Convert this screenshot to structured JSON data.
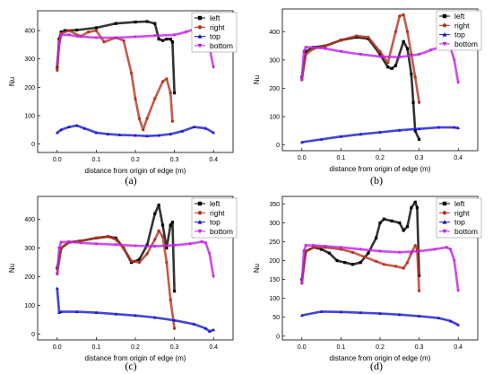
{
  "chart_data": [
    {
      "type": "line",
      "panel_label": "(a)",
      "xlabel": "distance from origin of edge (m)",
      "ylabel": "Nu",
      "xlim": [
        -0.05,
        0.45
      ],
      "ylim": [
        -30,
        470
      ],
      "xticks": [
        "0.0",
        "0.1",
        "0.2",
        "0.3",
        "0.4"
      ],
      "yticks": [
        "0",
        "100",
        "200",
        "300",
        "400"
      ],
      "legend_position": "top-right",
      "series": [
        {
          "name": "left",
          "color": "#000000",
          "marker": "square",
          "x": [
            0,
            0.005,
            0.01,
            0.02,
            0.05,
            0.1,
            0.15,
            0.2,
            0.23,
            0.25,
            0.26,
            0.27,
            0.28,
            0.29,
            0.295,
            0.3
          ],
          "y": [
            270,
            370,
            395,
            400,
            402,
            410,
            425,
            430,
            432,
            425,
            370,
            365,
            370,
            370,
            360,
            180
          ]
        },
        {
          "name": "right",
          "color": "#b5321c",
          "marker": "circle",
          "x": [
            0,
            0.005,
            0.01,
            0.03,
            0.06,
            0.08,
            0.1,
            0.12,
            0.15,
            0.17,
            0.19,
            0.2,
            0.21,
            0.22,
            0.23,
            0.25,
            0.27,
            0.28,
            0.29,
            0.295
          ],
          "y": [
            260,
            360,
            390,
            400,
            380,
            395,
            400,
            360,
            375,
            365,
            250,
            160,
            90,
            50,
            90,
            160,
            220,
            230,
            180,
            80
          ]
        },
        {
          "name": "top",
          "color": "#1515d0",
          "marker": "triangle-up",
          "x": [
            0,
            0.01,
            0.03,
            0.05,
            0.07,
            0.1,
            0.13,
            0.16,
            0.2,
            0.23,
            0.26,
            0.29,
            0.32,
            0.35,
            0.38,
            0.4
          ],
          "y": [
            40,
            50,
            60,
            65,
            55,
            40,
            35,
            32,
            30,
            28,
            30,
            35,
            45,
            60,
            55,
            40
          ]
        },
        {
          "name": "bottom",
          "color": "#c020e8",
          "marker": "triangle-down",
          "x": [
            0,
            0.005,
            0.01,
            0.03,
            0.05,
            0.1,
            0.15,
            0.2,
            0.25,
            0.3,
            0.33,
            0.35,
            0.37,
            0.38,
            0.39,
            0.4
          ],
          "y": [
            280,
            350,
            385,
            385,
            380,
            375,
            375,
            378,
            382,
            385,
            395,
            405,
            410,
            400,
            340,
            270
          ]
        }
      ]
    },
    {
      "type": "line",
      "panel_label": "(b)",
      "xlabel": "distance from origin of edge (m)",
      "ylabel": "Nu",
      "xlim": [
        -0.05,
        0.45
      ],
      "ylim": [
        -20,
        480
      ],
      "xticks": [
        "0.0",
        "0.1",
        "0.2",
        "0.3",
        "0.4"
      ],
      "yticks": [
        "0",
        "100",
        "200",
        "300",
        "400"
      ],
      "legend_position": "top-right",
      "series": [
        {
          "name": "left",
          "color": "#000000",
          "marker": "square",
          "x": [
            0,
            0.01,
            0.03,
            0.06,
            0.1,
            0.14,
            0.17,
            0.2,
            0.22,
            0.23,
            0.24,
            0.26,
            0.27,
            0.28,
            0.285,
            0.29,
            0.3
          ],
          "y": [
            240,
            330,
            345,
            350,
            370,
            380,
            375,
            320,
            275,
            270,
            280,
            365,
            340,
            250,
            150,
            50,
            20
          ]
        },
        {
          "name": "right",
          "color": "#b5321c",
          "marker": "circle",
          "x": [
            0,
            0.01,
            0.03,
            0.06,
            0.1,
            0.14,
            0.17,
            0.2,
            0.22,
            0.24,
            0.25,
            0.26,
            0.27,
            0.28,
            0.29,
            0.3
          ],
          "y": [
            230,
            320,
            340,
            350,
            370,
            385,
            380,
            330,
            290,
            400,
            455,
            460,
            400,
            320,
            240,
            150
          ]
        },
        {
          "name": "top",
          "color": "#1515d0",
          "marker": "triangle-up",
          "x": [
            0,
            0.05,
            0.1,
            0.15,
            0.2,
            0.25,
            0.3,
            0.35,
            0.39,
            0.4
          ],
          "y": [
            10,
            20,
            30,
            38,
            45,
            52,
            57,
            62,
            62,
            60
          ]
        },
        {
          "name": "bottom",
          "color": "#c020e8",
          "marker": "triangle-down",
          "x": [
            0,
            0.005,
            0.01,
            0.03,
            0.06,
            0.1,
            0.15,
            0.2,
            0.25,
            0.3,
            0.33,
            0.36,
            0.38,
            0.39,
            0.4
          ],
          "y": [
            230,
            330,
            345,
            345,
            340,
            330,
            320,
            312,
            310,
            320,
            335,
            348,
            345,
            300,
            220
          ]
        }
      ]
    },
    {
      "type": "line",
      "panel_label": "(c)",
      "xlabel": "distance from origin of edge (m)",
      "ylabel": "Nu",
      "xlim": [
        -0.05,
        0.45
      ],
      "ylim": [
        -20,
        480
      ],
      "xticks": [
        "0.0",
        "0.1",
        "0.2",
        "0.3",
        "0.4"
      ],
      "yticks": [
        "0",
        "100",
        "200",
        "300",
        "400"
      ],
      "legend_position": "top-right",
      "series": [
        {
          "name": "left",
          "color": "#000000",
          "marker": "square",
          "x": [
            0,
            0.01,
            0.03,
            0.06,
            0.1,
            0.13,
            0.15,
            0.17,
            0.19,
            0.21,
            0.23,
            0.25,
            0.26,
            0.27,
            0.28,
            0.29,
            0.295,
            0.3
          ],
          "y": [
            230,
            300,
            320,
            325,
            335,
            340,
            335,
            300,
            250,
            260,
            310,
            420,
            450,
            380,
            300,
            380,
            390,
            150
          ]
        },
        {
          "name": "right",
          "color": "#b5321c",
          "marker": "circle",
          "x": [
            0,
            0.01,
            0.03,
            0.06,
            0.1,
            0.13,
            0.15,
            0.17,
            0.19,
            0.21,
            0.23,
            0.25,
            0.26,
            0.27,
            0.28,
            0.29,
            0.3
          ],
          "y": [
            210,
            300,
            320,
            325,
            335,
            340,
            330,
            300,
            255,
            250,
            280,
            330,
            360,
            340,
            250,
            120,
            20
          ]
        },
        {
          "name": "top",
          "color": "#1515d0",
          "marker": "triangle-up",
          "x": [
            0,
            0.005,
            0.01,
            0.05,
            0.1,
            0.15,
            0.2,
            0.25,
            0.3,
            0.35,
            0.38,
            0.39,
            0.4
          ],
          "y": [
            160,
            75,
            78,
            78,
            75,
            70,
            65,
            58,
            48,
            35,
            20,
            10,
            15
          ]
        },
        {
          "name": "bottom",
          "color": "#c020e8",
          "marker": "triangle-down",
          "x": [
            0,
            0.005,
            0.01,
            0.03,
            0.06,
            0.1,
            0.15,
            0.2,
            0.25,
            0.3,
            0.34,
            0.37,
            0.38,
            0.39,
            0.4
          ],
          "y": [
            210,
            300,
            320,
            322,
            318,
            315,
            312,
            308,
            306,
            310,
            315,
            322,
            318,
            280,
            200
          ]
        }
      ]
    },
    {
      "type": "line",
      "panel_label": "(d)",
      "xlabel": "distance from origin of edge (m)",
      "ylabel": "Nu",
      "xlim": [
        -0.05,
        0.45
      ],
      "ylim": [
        -10,
        370
      ],
      "xticks": [
        "0.0",
        "0.1",
        "0.2",
        "0.3",
        "0.4"
      ],
      "yticks": [
        "0",
        "50",
        "100",
        "150",
        "200",
        "250",
        "300",
        "350"
      ],
      "legend_position": "top-right",
      "series": [
        {
          "name": "left",
          "color": "#000000",
          "marker": "square",
          "x": [
            0,
            0.01,
            0.03,
            0.05,
            0.07,
            0.09,
            0.11,
            0.13,
            0.15,
            0.17,
            0.19,
            0.2,
            0.21,
            0.23,
            0.25,
            0.26,
            0.27,
            0.28,
            0.29,
            0.295,
            0.3
          ],
          "y": [
            150,
            225,
            235,
            230,
            220,
            200,
            195,
            190,
            195,
            220,
            260,
            300,
            310,
            305,
            300,
            280,
            290,
            340,
            355,
            340,
            160
          ]
        },
        {
          "name": "right",
          "color": "#b5321c",
          "marker": "circle",
          "x": [
            0,
            0.01,
            0.03,
            0.06,
            0.1,
            0.13,
            0.16,
            0.19,
            0.21,
            0.24,
            0.26,
            0.27,
            0.28,
            0.29,
            0.295,
            0.3
          ],
          "y": [
            140,
            225,
            235,
            235,
            230,
            222,
            210,
            198,
            190,
            185,
            180,
            195,
            220,
            240,
            230,
            120
          ]
        },
        {
          "name": "top",
          "color": "#1515d0",
          "marker": "triangle-up",
          "x": [
            0,
            0.05,
            0.1,
            0.15,
            0.2,
            0.25,
            0.3,
            0.35,
            0.38,
            0.4
          ],
          "y": [
            55,
            65,
            64,
            62,
            60,
            57,
            53,
            48,
            40,
            30
          ]
        },
        {
          "name": "bottom",
          "color": "#c020e8",
          "marker": "triangle-down",
          "x": [
            0,
            0.005,
            0.01,
            0.03,
            0.06,
            0.1,
            0.15,
            0.2,
            0.25,
            0.3,
            0.34,
            0.37,
            0.38,
            0.39,
            0.4
          ],
          "y": [
            140,
            225,
            240,
            240,
            238,
            235,
            230,
            225,
            222,
            225,
            230,
            235,
            230,
            200,
            120
          ]
        }
      ]
    }
  ]
}
